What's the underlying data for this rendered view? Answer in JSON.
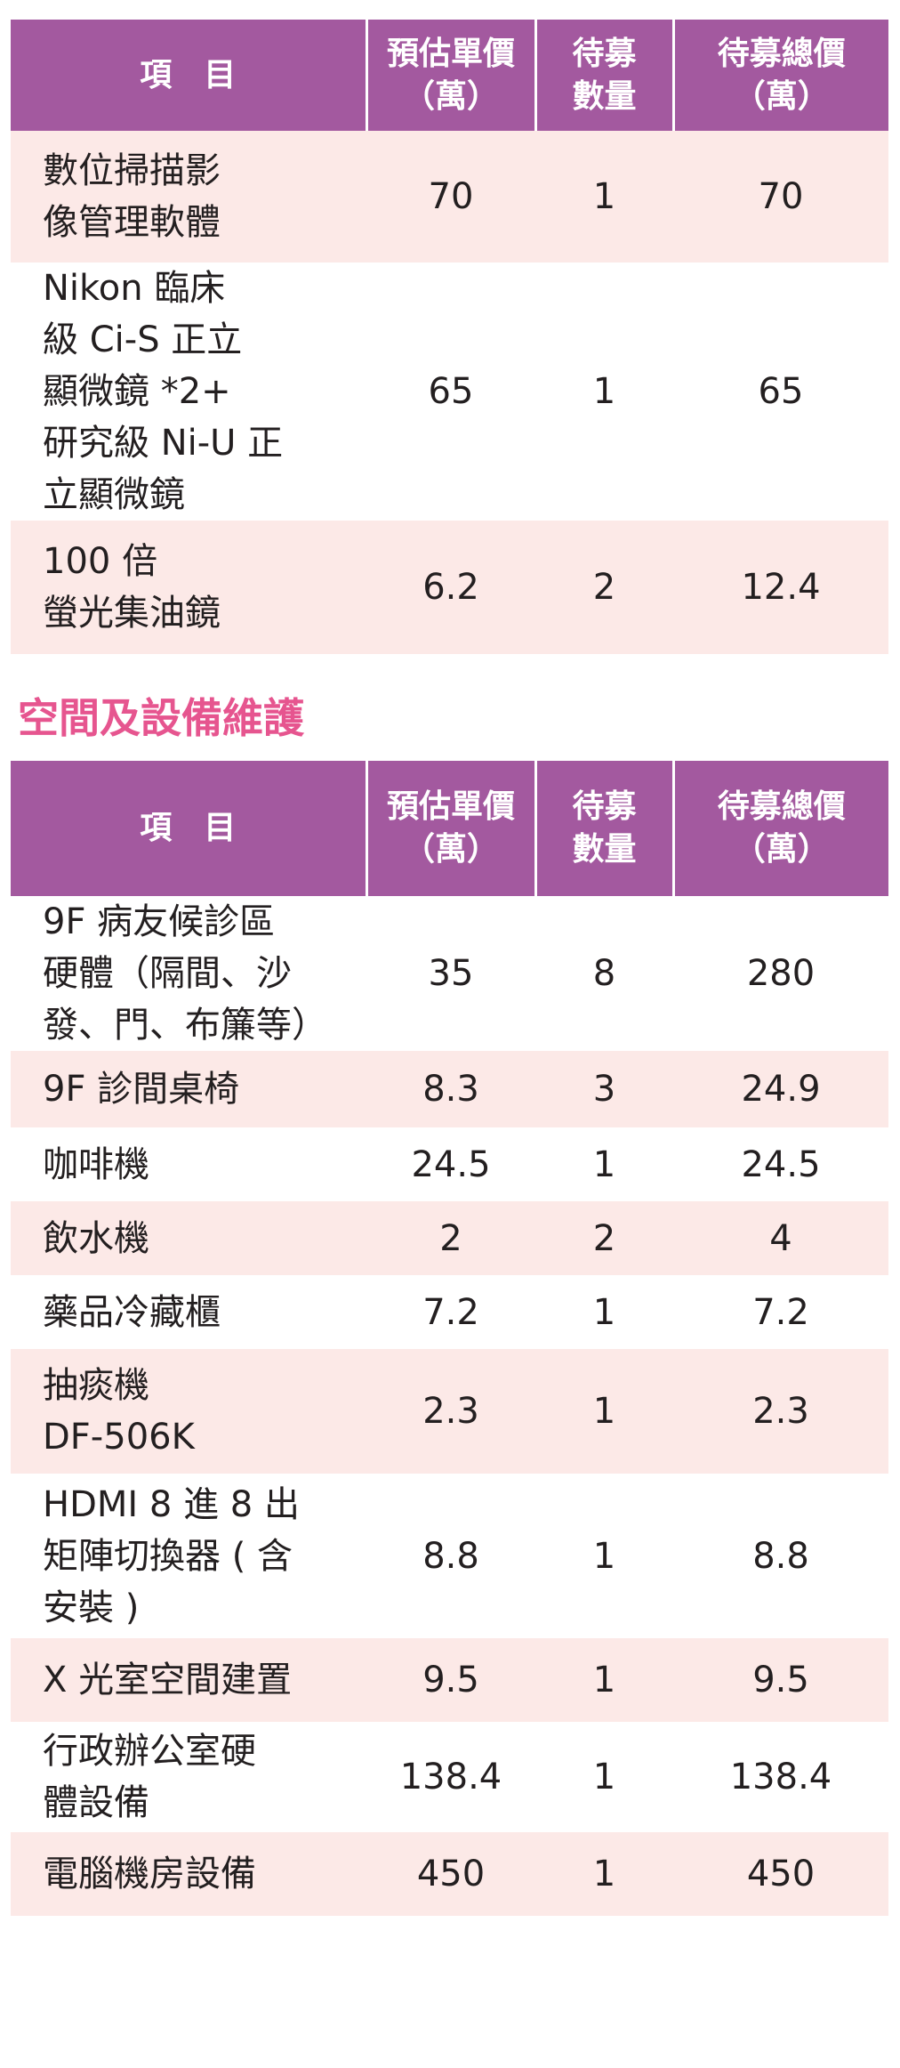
{
  "headers": {
    "item": "項　目",
    "unit_price": [
      "預估單價",
      "（萬）"
    ],
    "quantity": [
      "待募",
      "數量"
    ],
    "total": [
      "待募總價",
      "（萬）"
    ]
  },
  "table1": {
    "rows": [
      {
        "name": [
          "數位掃描影",
          "像管理軟體"
        ],
        "price": "70",
        "qty": "1",
        "total": "70"
      },
      {
        "name": [
          "Nikon 臨床",
          "級 Ci-S 正立",
          "顯微鏡 *2+",
          "研究級 Ni-U 正",
          "立顯微鏡"
        ],
        "price": "65",
        "qty": "1",
        "total": "65"
      },
      {
        "name": [
          "100 倍",
          "螢光集油鏡"
        ],
        "price": "6.2",
        "qty": "2",
        "total": "12.4"
      }
    ]
  },
  "section2_title": "空間及設備維護",
  "table2": {
    "rows": [
      {
        "name": [
          "9F 病友候診區",
          "硬體（隔間、沙",
          "發、門、布簾等）"
        ],
        "price": "35",
        "qty": "8",
        "total": "280"
      },
      {
        "name": [
          "9F 診間桌椅"
        ],
        "price": "8.3",
        "qty": "3",
        "total": "24.9"
      },
      {
        "name": [
          "咖啡機"
        ],
        "price": "24.5",
        "qty": "1",
        "total": "24.5"
      },
      {
        "name": [
          "飲水機"
        ],
        "price": "2",
        "qty": "2",
        "total": "4"
      },
      {
        "name": [
          "藥品冷藏櫃"
        ],
        "price": "7.2",
        "qty": "1",
        "total": "7.2"
      },
      {
        "name": [
          "抽痰機",
          "DF-506K"
        ],
        "price": "2.3",
        "qty": "1",
        "total": "2.3"
      },
      {
        "name": [
          "HDMI 8 進 8 出",
          "矩陣切換器 ( 含",
          "安裝 )"
        ],
        "price": "8.8",
        "qty": "1",
        "total": "8.8"
      },
      {
        "name": [
          "X 光室空間建置"
        ],
        "price": "9.5",
        "qty": "1",
        "total": "9.5"
      },
      {
        "name": [
          "行政辦公室硬",
          "體設備"
        ],
        "price": "138.4",
        "qty": "1",
        "total": "138.4"
      },
      {
        "name": [
          "電腦機房設備"
        ],
        "price": "450",
        "qty": "1",
        "total": "450"
      }
    ]
  }
}
